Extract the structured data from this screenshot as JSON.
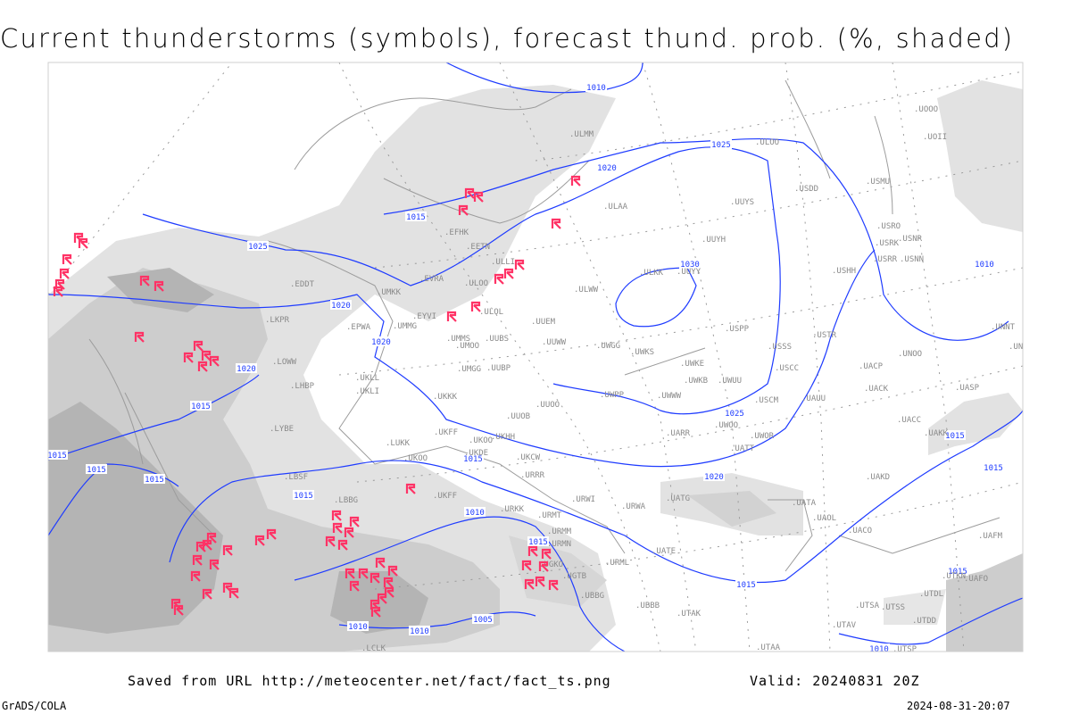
{
  "title": "Current thunderstorms (symbols), forecast thund. prob. (%, shaded)",
  "footer": {
    "source": "Saved from URL http://meteocenter.net/fact/fact_ts.png",
    "valid": "Valid: 20240831 20Z",
    "software": "GrADS/COLA",
    "timestamp": "2024-08-31-20:07"
  },
  "colors": {
    "isobar": "#1f3cff",
    "thunderstorm_symbol": "#ff3366",
    "shade_light": "#e2e2e2",
    "shade_mid": "#cdcdcd",
    "shade_dark": "#b4b4b4",
    "station_text": "#8a8a8a"
  },
  "legend": {
    "symbols": "thunderstorm-icon",
    "shading": "forecast thunderstorm probability (%)",
    "contours": "isobars (hPa)"
  },
  "isobar_labels": [
    "1010",
    "1025",
    "1020",
    "1015",
    "1025",
    "1030",
    "1020",
    "1020",
    "1020",
    "1010",
    "1015",
    "1015",
    "1015",
    "1015",
    "1015",
    "1015",
    "1025",
    "1020",
    "1015",
    "1015",
    "1010",
    "1015",
    "1015",
    "1015",
    "1005",
    "1010",
    "1010",
    "1010"
  ],
  "stations": [
    "EDDT",
    "UMKK",
    "EVRA",
    "ULOO",
    "ULOL",
    "EYVI",
    "UMMG",
    "EPWA",
    "UMMS",
    "UMOO",
    "UUBS",
    "UUEM",
    "UUWW",
    "LKPR",
    "LOWW",
    "UKLL",
    "LHBP",
    "UKLI",
    "UMGG",
    "UUBP",
    "UKKK",
    "UUOO",
    "UUOB",
    "LYBE",
    "UKHH",
    "UKOO",
    "UKFF",
    "LUKK",
    "UKDE",
    "UKOO",
    "UKCW",
    "URRR",
    "LBSF",
    "LBBG",
    "UKFF",
    "URKK",
    "URMT",
    "URWI",
    "URWA",
    "UATG",
    "UATA",
    "UAOL",
    "UACO",
    "URMM",
    "URMN",
    "UATE",
    "URML",
    "UBBB",
    "UTAK",
    "UTAA",
    "UTSA",
    "UTSS",
    "UTAV",
    "UAKD",
    "UACC",
    "UAKK",
    "UASP",
    "UACK",
    "UACP",
    "UNOO",
    "USTR",
    "USSS",
    "USCC",
    "USCM",
    "UAUU",
    "UWKE",
    "UWKB",
    "UWUU",
    "UWWW",
    "UWPP",
    "UWGG",
    "UWKS",
    "UWOO",
    "UWOR",
    "UARR",
    "UATT",
    "UNNT",
    "UNBB",
    "USPP",
    "UUYS",
    "UUYH",
    "ULKK",
    "UUYY",
    "ULWW",
    "ULAA",
    "ULOO",
    "USDD",
    "USMU",
    "USRO",
    "USRK",
    "USNR",
    "USRR",
    "USNN",
    "USHH",
    "ULMM",
    "EFHK",
    "EETN",
    "ULLI",
    "UOOO",
    "UOII",
    "UAFM",
    "UTDL",
    "UTKN",
    "UAFO",
    "UTDD",
    "UTSP",
    "LCLK",
    "UGTB",
    "UGKO",
    "UBBG"
  ]
}
